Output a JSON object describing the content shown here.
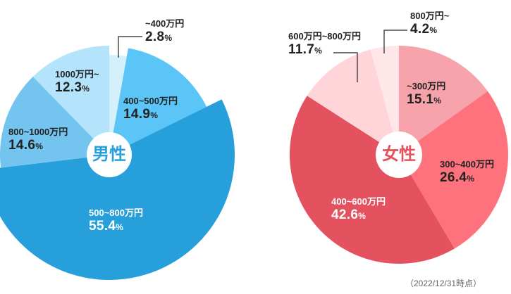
{
  "chart_data": [
    {
      "type": "pie",
      "title": "男性",
      "center_label": "男性",
      "center_color": "#279fdb",
      "categories": [
        "~400万円",
        "400~500万円",
        "500~800万円",
        "800~1000万円",
        "1000万円~"
      ],
      "values": [
        2.8,
        14.9,
        55.4,
        14.6,
        12.3
      ],
      "unit": "%",
      "colors": [
        "#d4f0fd",
        "#5cc5f8",
        "#279fdb",
        "#73c4ef",
        "#b3e4fb"
      ],
      "start_angle": "top, clockwise"
    },
    {
      "type": "pie",
      "title": "女性",
      "center_label": "女性",
      "center_color": "#e3525e",
      "categories": [
        "~300万円",
        "300~400万円",
        "400~600万円",
        "600万円~800万円",
        "800万円~"
      ],
      "values": [
        15.1,
        26.4,
        42.6,
        11.7,
        4.2
      ],
      "unit": "%",
      "colors": [
        "#f6a3ab",
        "#fe727d",
        "#e3525e",
        "#ffd5da",
        "#ffe6e9"
      ],
      "start_angle": "top, clockwise"
    }
  ],
  "male": {
    "center_label": "男性",
    "labels": [
      {
        "category": "~400万円",
        "value": "2.8",
        "unit": "%"
      },
      {
        "category": "400~500万円",
        "value": "14.9",
        "unit": "%"
      },
      {
        "category": "500~800万円",
        "value": "55.4",
        "unit": "%"
      },
      {
        "category": "800~1000万円",
        "value": "14.6",
        "unit": "%"
      },
      {
        "category": "1000万円~",
        "value": "12.3",
        "unit": "%"
      }
    ]
  },
  "female": {
    "center_label": "女性",
    "labels": [
      {
        "category": "~300万円",
        "value": "15.1",
        "unit": "%"
      },
      {
        "category": "300~400万円",
        "value": "26.4",
        "unit": "%"
      },
      {
        "category": "400~600万円",
        "value": "42.6",
        "unit": "%"
      },
      {
        "category": "600万円~800万円",
        "value": "11.7",
        "unit": "%"
      },
      {
        "category": "800万円~",
        "value": "4.2",
        "unit": "%"
      }
    ]
  },
  "footnote": "（2022/12/31時点）"
}
